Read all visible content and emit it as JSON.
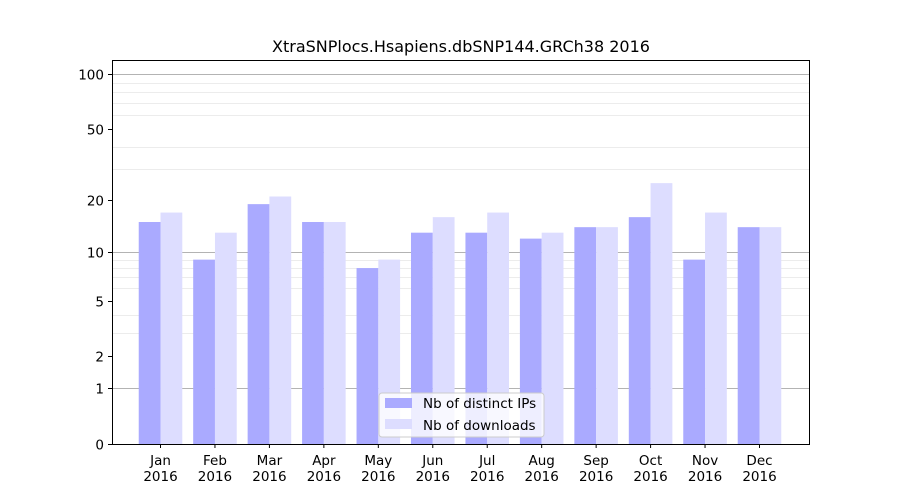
{
  "chart_data": {
    "type": "bar",
    "title": "XtraSNPlocs.Hsapiens.dbSNP144.GRCh38 2016",
    "xlabel": "",
    "ylabel": "",
    "y_scale": "log(1+y)",
    "ylim": [
      0,
      120
    ],
    "y_ticks": [
      0,
      1,
      2,
      5,
      10,
      20,
      50,
      100
    ],
    "categories": [
      [
        "Jan",
        "2016"
      ],
      [
        "Feb",
        "2016"
      ],
      [
        "Mar",
        "2016"
      ],
      [
        "Apr",
        "2016"
      ],
      [
        "May",
        "2016"
      ],
      [
        "Jun",
        "2016"
      ],
      [
        "Jul",
        "2016"
      ],
      [
        "Aug",
        "2016"
      ],
      [
        "Sep",
        "2016"
      ],
      [
        "Oct",
        "2016"
      ],
      [
        "Nov",
        "2016"
      ],
      [
        "Dec",
        "2016"
      ]
    ],
    "series": [
      {
        "name": "Nb of distinct IPs",
        "color": "#aaaaff",
        "values": [
          15,
          9,
          19,
          15,
          8,
          13,
          13,
          12,
          14,
          16,
          9,
          14
        ]
      },
      {
        "name": "Nb of downloads",
        "color": "#ddddff",
        "values": [
          17,
          13,
          21,
          15,
          9,
          16,
          17,
          13,
          14,
          25,
          17,
          14
        ]
      }
    ],
    "legend_position": "bottom-center",
    "grid": "horizontal"
  }
}
